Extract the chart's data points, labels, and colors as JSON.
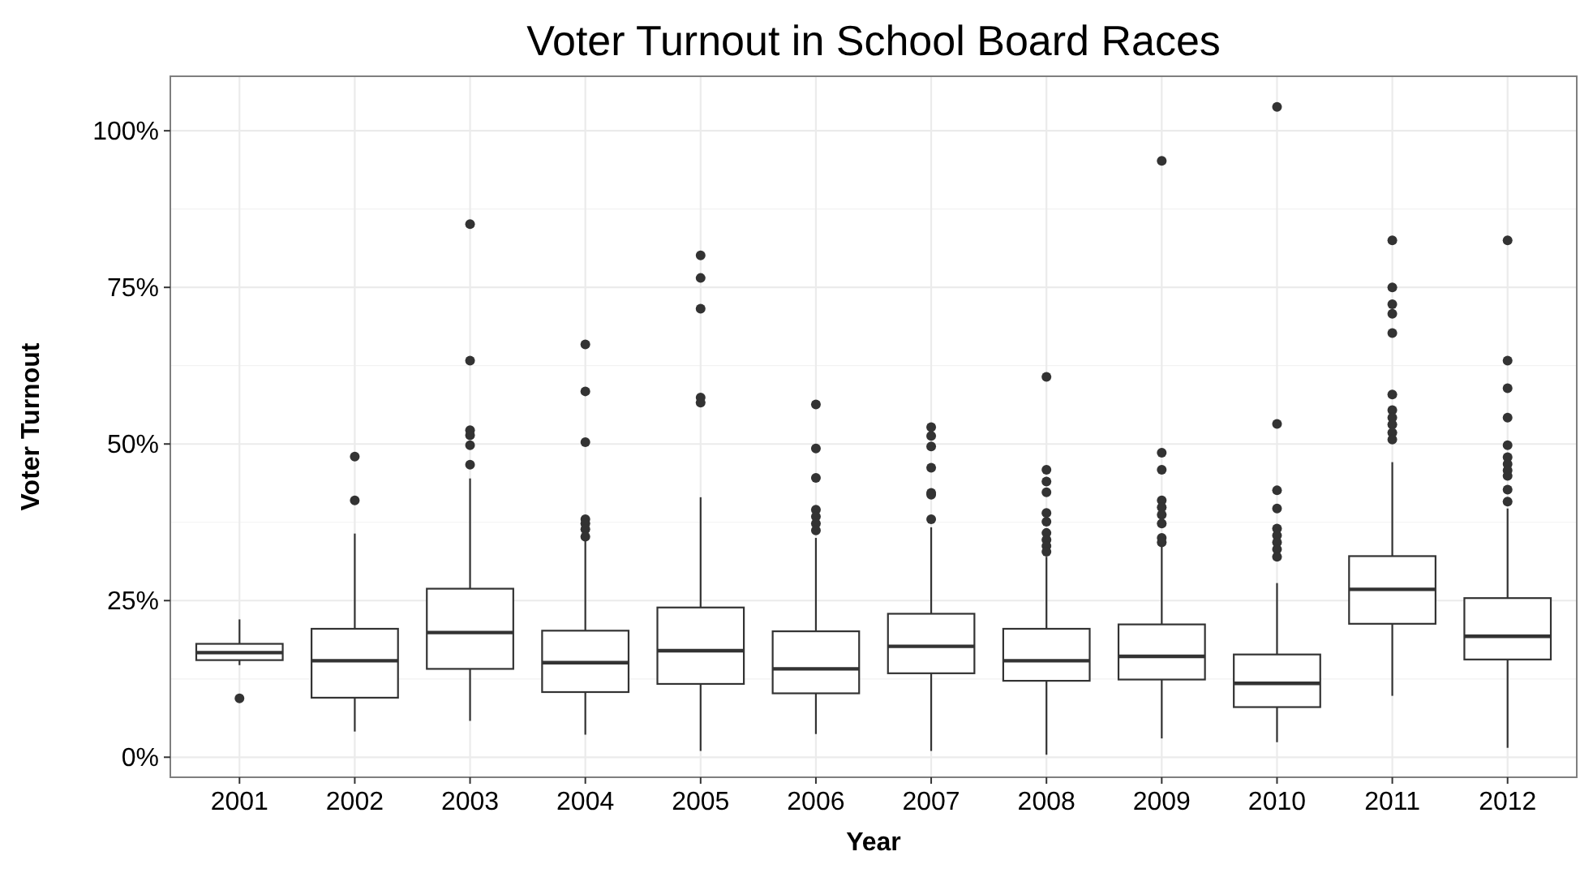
{
  "chart_data": {
    "type": "box",
    "title": "Voter Turnout in School Board Races",
    "xlabel": "Year",
    "ylabel": "Voter Turnout",
    "categories": [
      "2001",
      "2002",
      "2003",
      "2004",
      "2005",
      "2006",
      "2007",
      "2008",
      "2009",
      "2010",
      "2011",
      "2012"
    ],
    "color": "#333333",
    "grid": true,
    "marker": "circle",
    "ylim": [
      -3.2,
      108.7
    ],
    "yticks": [
      {
        "value": 0,
        "label": "0%"
      },
      {
        "value": 25,
        "label": "25%"
      },
      {
        "value": 50,
        "label": "50%"
      },
      {
        "value": 75,
        "label": "75%"
      },
      {
        "value": 100,
        "label": "100%"
      }
    ],
    "boxes": [
      {
        "low": 14.7,
        "q1": 15.5,
        "median": 16.7,
        "q3": 18.1,
        "high": 22.0,
        "outliers": [
          9.4
        ]
      },
      {
        "low": 4.1,
        "q1": 9.5,
        "median": 15.4,
        "q3": 20.5,
        "high": 35.7,
        "outliers": [
          41.0,
          48.0
        ]
      },
      {
        "low": 5.8,
        "q1": 14.1,
        "median": 19.9,
        "q3": 26.9,
        "high": 44.5,
        "outliers": [
          85.1,
          63.3,
          52.2,
          51.4,
          49.8,
          46.7
        ]
      },
      {
        "low": 3.6,
        "q1": 10.4,
        "median": 15.1,
        "q3": 20.2,
        "high": 34.6,
        "outliers": [
          65.9,
          58.4,
          50.3,
          38.0,
          37.3,
          36.4,
          35.2
        ]
      },
      {
        "low": 1.0,
        "q1": 11.7,
        "median": 17.0,
        "q3": 23.9,
        "high": 41.5,
        "outliers": [
          80.1,
          76.5,
          71.6,
          57.4,
          56.6
        ]
      },
      {
        "low": 3.7,
        "q1": 10.2,
        "median": 14.1,
        "q3": 20.1,
        "high": 35.0,
        "outliers": [
          56.3,
          49.3,
          44.6,
          39.5,
          38.4,
          37.3,
          36.2
        ]
      },
      {
        "low": 1.0,
        "q1": 13.4,
        "median": 17.7,
        "q3": 22.9,
        "high": 36.7,
        "outliers": [
          52.7,
          51.3,
          49.6,
          46.2,
          42.2,
          41.9,
          38.0
        ]
      },
      {
        "low": 0.4,
        "q1": 12.2,
        "median": 15.4,
        "q3": 20.5,
        "high": 32.0,
        "outliers": [
          60.7,
          45.9,
          44.0,
          42.3,
          39.0,
          37.6,
          35.8,
          34.7,
          33.7,
          32.8
        ]
      },
      {
        "low": 3.0,
        "q1": 12.4,
        "median": 16.1,
        "q3": 21.2,
        "high": 33.7,
        "outliers": [
          95.2,
          48.6,
          45.9,
          41.0,
          39.9,
          38.7,
          37.3,
          35.0,
          34.3
        ]
      },
      {
        "low": 2.4,
        "q1": 8.0,
        "median": 11.8,
        "q3": 16.4,
        "high": 27.8,
        "outliers": [
          103.8,
          53.2,
          42.6,
          39.7,
          36.5,
          35.4,
          34.3,
          33.2,
          32.0
        ]
      },
      {
        "low": 9.8,
        "q1": 21.3,
        "median": 26.8,
        "q3": 32.1,
        "high": 47.1,
        "outliers": [
          82.5,
          75.0,
          72.3,
          70.8,
          67.7,
          57.9,
          55.4,
          54.2,
          53.1,
          51.8,
          50.7
        ]
      },
      {
        "low": 1.5,
        "q1": 15.6,
        "median": 19.3,
        "q3": 25.4,
        "high": 39.7,
        "outliers": [
          82.5,
          63.3,
          58.9,
          54.2,
          49.8,
          47.9,
          46.8,
          45.8,
          44.9,
          42.7,
          40.8
        ]
      }
    ]
  }
}
